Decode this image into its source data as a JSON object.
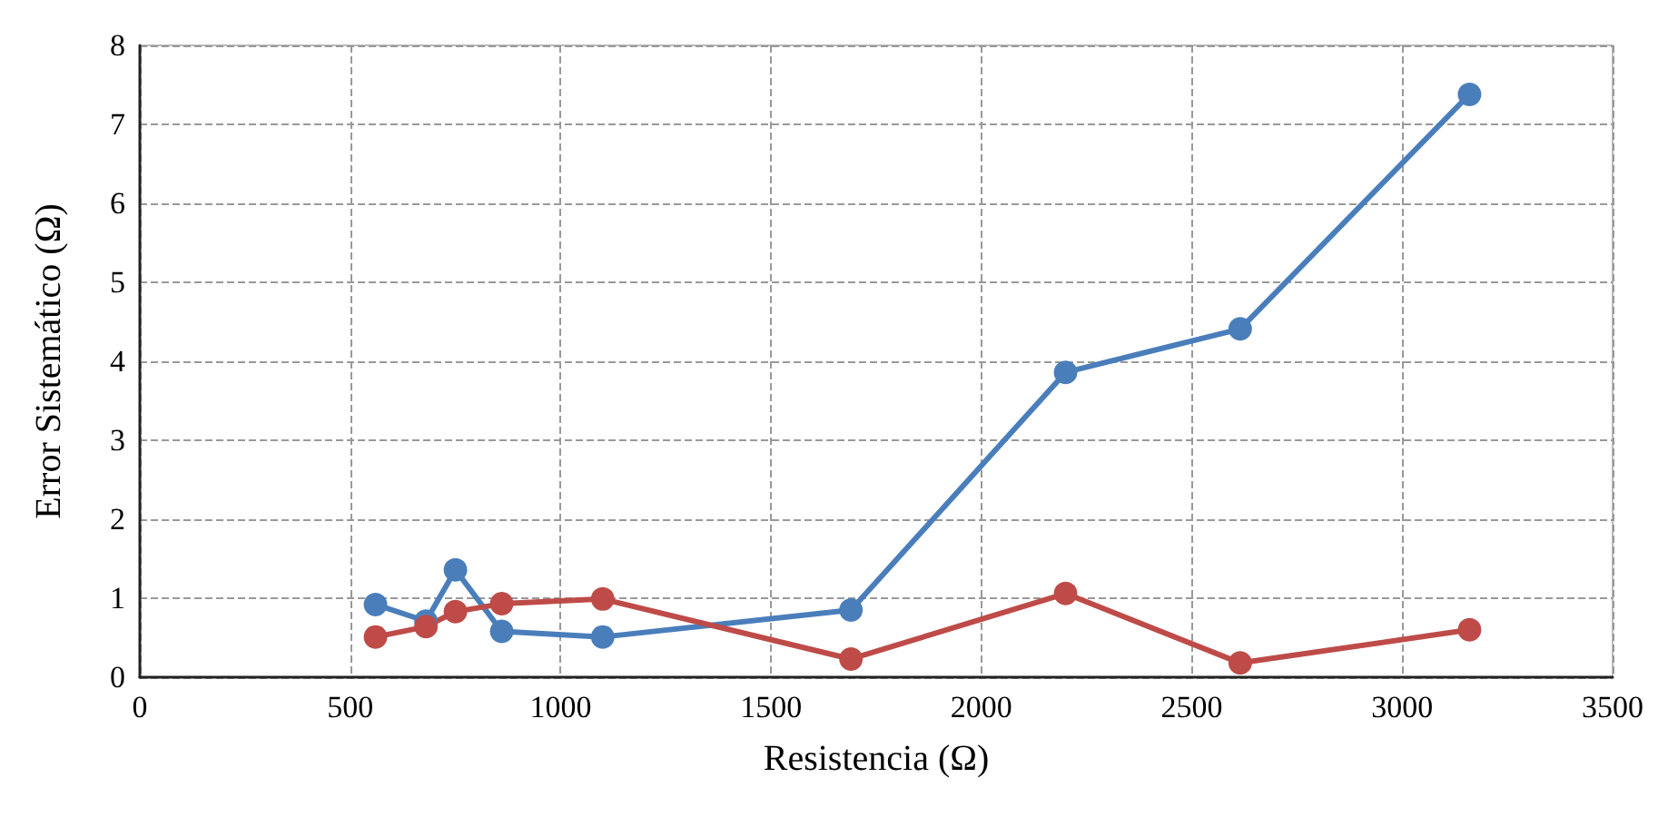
{
  "chart_data": {
    "type": "line",
    "xlabel": "Resistencia (Ω)",
    "ylabel": "Error Sistemático (Ω)",
    "x": [
      560,
      680,
      750,
      860,
      1100,
      1690,
      2200,
      2615,
      3160
    ],
    "series": [
      {
        "color": "#4a7ebb",
        "values": [
          0.92,
          0.71,
          1.36,
          0.58,
          0.51,
          0.85,
          3.86,
          4.41,
          7.38
        ]
      },
      {
        "color": "#be4b48",
        "values": [
          0.51,
          0.64,
          0.83,
          0.93,
          0.99,
          0.23,
          1.06,
          0.18,
          0.6
        ]
      }
    ],
    "xlim": [
      0,
      3500
    ],
    "xticks": [
      0,
      500,
      1000,
      1500,
      2000,
      2500,
      3000,
      3500
    ],
    "ylim": [
      0,
      8
    ],
    "yticks": [
      0,
      1,
      2,
      3,
      4,
      5,
      6,
      7,
      8
    ],
    "grid": true,
    "marker": "circle",
    "line_style": "solid"
  }
}
